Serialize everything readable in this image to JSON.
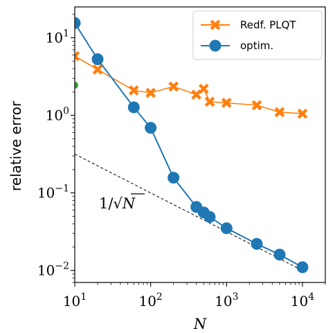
{
  "chart_data": {
    "type": "line",
    "xscale": "log",
    "yscale": "log",
    "xlim": [
      10,
      20000
    ],
    "ylim": [
      0.007,
      25
    ],
    "xlabel": "N",
    "ylabel": "relative error",
    "x_ticks": [
      {
        "value": 10,
        "base": "10",
        "exp": "1"
      },
      {
        "value": 100,
        "base": "10",
        "exp": "2"
      },
      {
        "value": 1000,
        "base": "10",
        "exp": "3"
      },
      {
        "value": 10000,
        "base": "10",
        "exp": "4"
      }
    ],
    "y_ticks": [
      {
        "value": 10,
        "base": "10",
        "exp": "1"
      },
      {
        "value": 1,
        "base": "10",
        "exp": "0"
      },
      {
        "value": 0.1,
        "base": "10",
        "exp": "−1"
      },
      {
        "value": 0.01,
        "base": "10",
        "exp": "−2"
      }
    ],
    "legend": {
      "location": "top-right"
    },
    "series": [
      {
        "name": "Redf. PLQT",
        "color": "#ff7f0e",
        "marker": "X",
        "x": [
          10,
          20,
          60,
          100,
          200,
          400,
          500,
          600,
          1000,
          2500,
          5000,
          10000
        ],
        "y": [
          5.8,
          3.9,
          2.1,
          1.95,
          2.35,
          1.85,
          2.2,
          1.5,
          1.45,
          1.35,
          1.1,
          1.05
        ]
      },
      {
        "name": "optim.",
        "color": "#1f77b4",
        "marker": "o",
        "x": [
          10,
          20,
          60,
          100,
          200,
          400,
          500,
          600,
          1000,
          2500,
          5000,
          10000
        ],
        "y": [
          15.5,
          5.3,
          1.27,
          0.69,
          0.157,
          0.066,
          0.056,
          0.049,
          0.035,
          0.022,
          0.016,
          0.011
        ]
      }
    ],
    "reference_line": {
      "label_text": "1/√N",
      "label_plain": "1/",
      "label_radicand": "N",
      "style": "dashed",
      "color": "#000000",
      "x": [
        10,
        10000
      ],
      "y": [
        0.316,
        0.01
      ]
    },
    "edge_marker": {
      "x": 10,
      "y": 2.45,
      "color": "#2ca02c"
    }
  }
}
